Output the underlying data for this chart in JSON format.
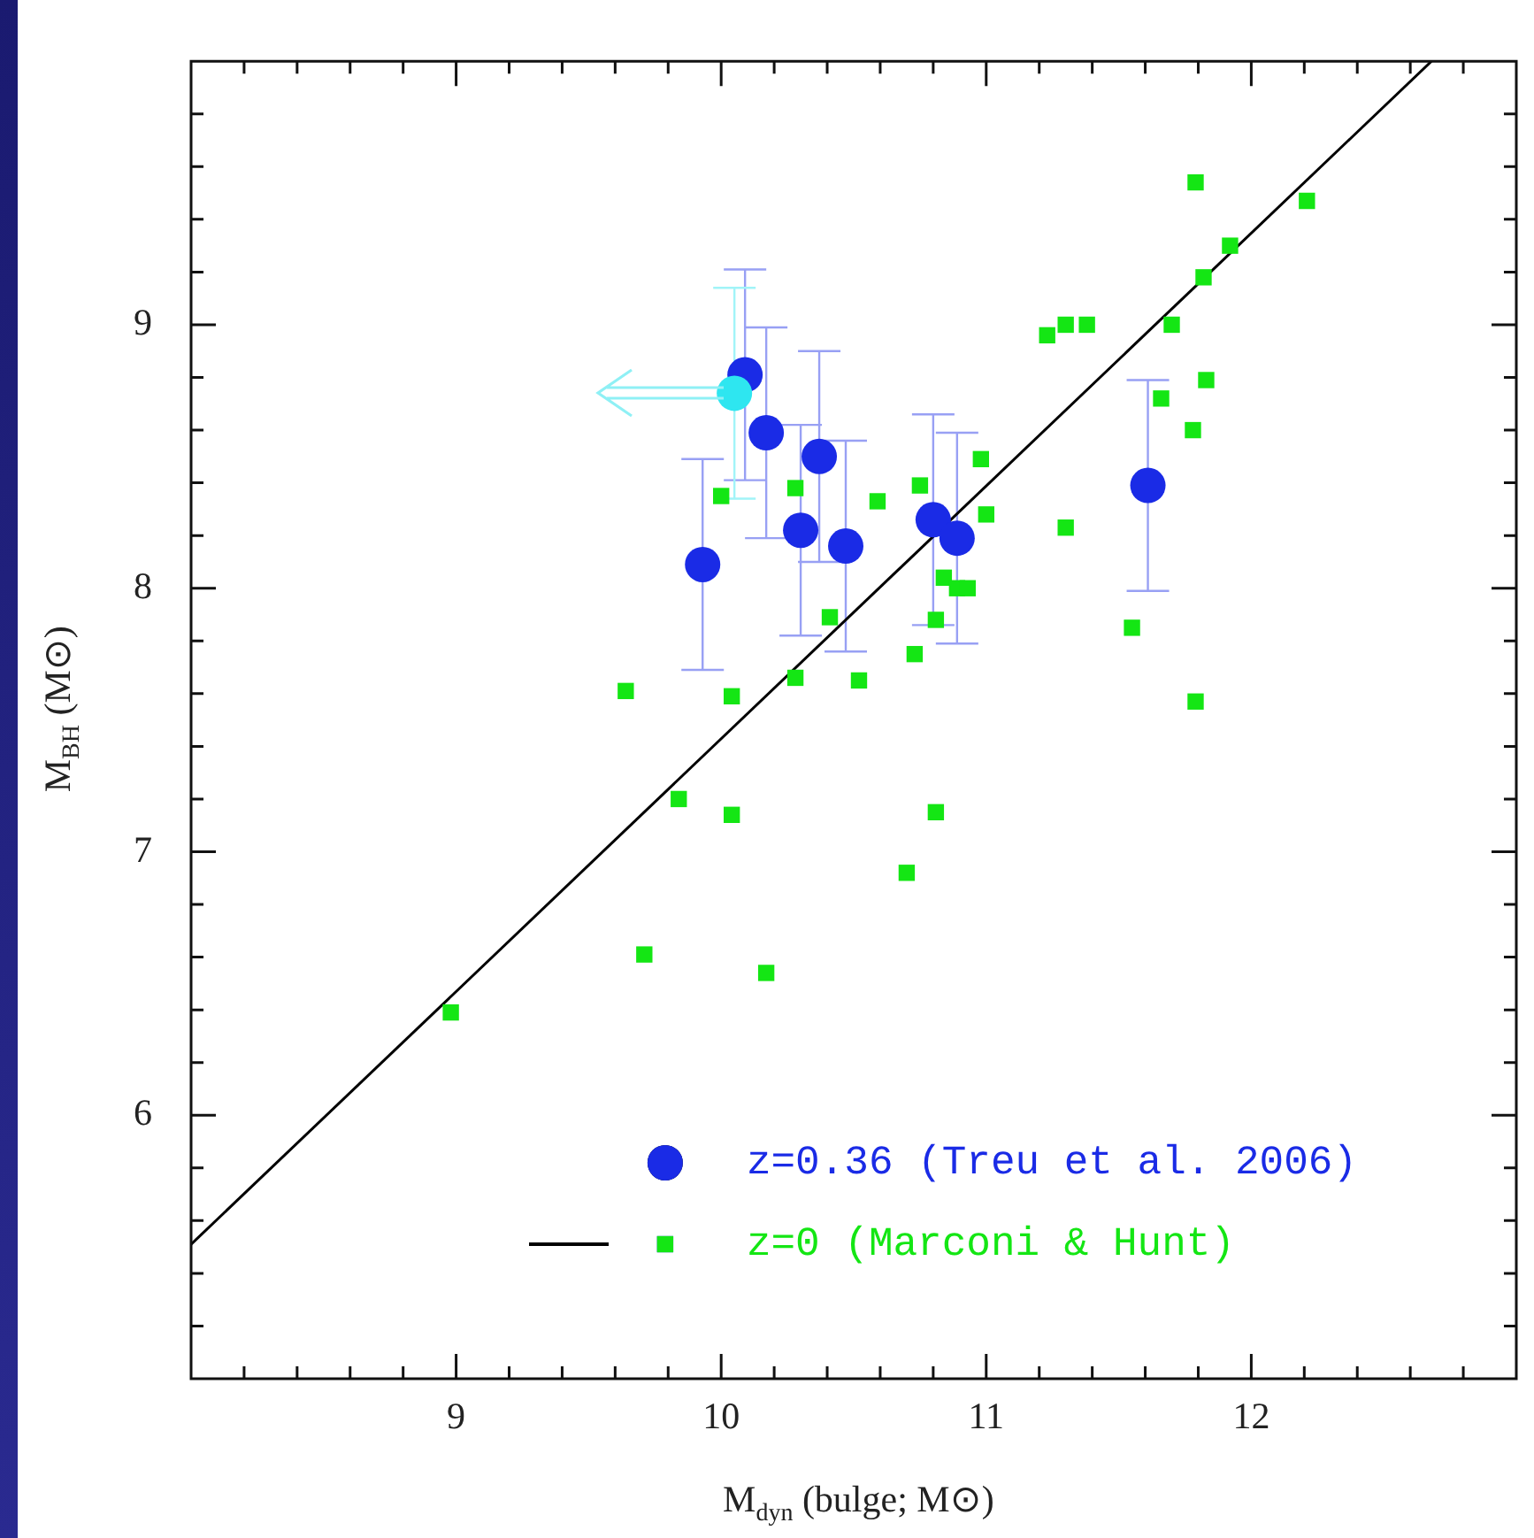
{
  "chart_data": {
    "type": "scatter",
    "xlabel": "M$_{dyn}$ (bulge; M⊙)",
    "ylabel": "M$_{BH}$ (M⊙)",
    "xlim": [
      8,
      13
    ],
    "ylim": [
      5,
      10
    ],
    "xticks": [
      {
        "value": 8.2,
        "label": null
      },
      {
        "value": 8.4,
        "label": null
      },
      {
        "value": 8.6,
        "label": null
      },
      {
        "value": 8.8,
        "label": null
      },
      9,
      {
        "value": 9.2,
        "label": null
      },
      {
        "value": 9.4,
        "label": null
      },
      {
        "value": 9.6,
        "label": null
      },
      {
        "value": 9.8,
        "label": null
      },
      10,
      {
        "value": 10.2,
        "label": null
      },
      {
        "value": 10.4,
        "label": null
      },
      {
        "value": 10.6,
        "label": null
      },
      {
        "value": 10.8,
        "label": null
      },
      11,
      {
        "value": 11.2,
        "label": null
      },
      {
        "value": 11.4,
        "label": null
      },
      {
        "value": 11.6,
        "label": null
      },
      {
        "value": 11.8,
        "label": null
      },
      12,
      {
        "value": 12.2,
        "label": null
      },
      {
        "value": 12.4,
        "label": null
      },
      {
        "value": 12.6,
        "label": null
      },
      {
        "value": 12.8,
        "label": null
      }
    ],
    "yticks": [
      {
        "value": 5.2,
        "label": null
      },
      {
        "value": 5.4,
        "label": null
      },
      {
        "value": 5.6,
        "label": null
      },
      {
        "value": 5.8,
        "label": null
      },
      6,
      {
        "value": 6.2,
        "label": null
      },
      {
        "value": 6.4,
        "label": null
      },
      {
        "value": 6.6,
        "label": null
      },
      {
        "value": 6.8,
        "label": null
      },
      7,
      {
        "value": 7.2,
        "label": null
      },
      {
        "value": 7.4,
        "label": null
      },
      {
        "value": 7.6,
        "label": null
      },
      {
        "value": 7.8,
        "label": null
      },
      8,
      {
        "value": 8.2,
        "label": null
      },
      {
        "value": 8.4,
        "label": null
      },
      {
        "value": 8.6,
        "label": null
      },
      {
        "value": 8.8,
        "label": null
      },
      9,
      {
        "value": 9.2,
        "label": null
      },
      {
        "value": 9.4,
        "label": null
      },
      {
        "value": 9.6,
        "label": null
      },
      {
        "value": 9.8,
        "label": null
      }
    ],
    "legend": "bottom right",
    "series": [
      {
        "type": "line",
        "marker": "none",
        "line_style": "solid",
        "color": "#000000",
        "x": [
          8,
          12.68
        ],
        "values": [
          5.51,
          10
        ]
      },
      {
        "name": "z=0 (Marconi & Hunt)",
        "type": "scatter",
        "marker": "square",
        "color": "#14e614",
        "x": [
          10.0,
          10.28,
          10.41,
          10.28,
          10.52,
          10.59,
          9.64,
          10.04,
          11.79,
          12.21,
          11.92,
          11.82,
          11.23,
          11.3,
          11.38,
          11.7,
          11.83,
          11.66,
          11.78,
          10.98,
          10.75,
          11.0,
          11.3,
          10.84,
          10.89,
          10.93,
          10.81,
          11.55,
          10.73,
          11.79,
          9.84,
          10.04,
          9.71,
          10.17,
          8.98,
          10.81,
          10.7
        ],
        "values": [
          8.35,
          8.38,
          7.89,
          7.66,
          7.65,
          8.33,
          7.61,
          7.59,
          9.54,
          9.47,
          9.3,
          9.18,
          8.96,
          9.0,
          9.0,
          9.0,
          8.79,
          8.72,
          8.6,
          8.49,
          8.39,
          8.28,
          8.23,
          8.04,
          8.0,
          8.0,
          7.88,
          7.85,
          7.75,
          7.57,
          7.2,
          7.14,
          6.61,
          6.54,
          6.39,
          7.15,
          6.92
        ]
      },
      {
        "name": "z=0.36 (Treu et al. 2006)",
        "type": "scatter",
        "marker": "circle",
        "color": "#1a2be6",
        "x": [
          10.09,
          10.17,
          10.37,
          10.3,
          10.47,
          9.93,
          10.8,
          10.89,
          11.61
        ],
        "values": [
          8.81,
          8.59,
          8.5,
          8.22,
          8.16,
          8.09,
          8.26,
          8.19,
          8.39
        ],
        "errors": [
          0.4,
          0.4,
          0.4,
          0.4,
          0.4,
          0.4,
          0.4,
          0.4,
          0.4
        ]
      },
      {
        "type": "scatter",
        "marker": "circle",
        "color": "#2ee6f0",
        "x": [
          10.05
        ],
        "values": [
          8.74
        ],
        "errors": [
          0.4
        ]
      }
    ]
  }
}
